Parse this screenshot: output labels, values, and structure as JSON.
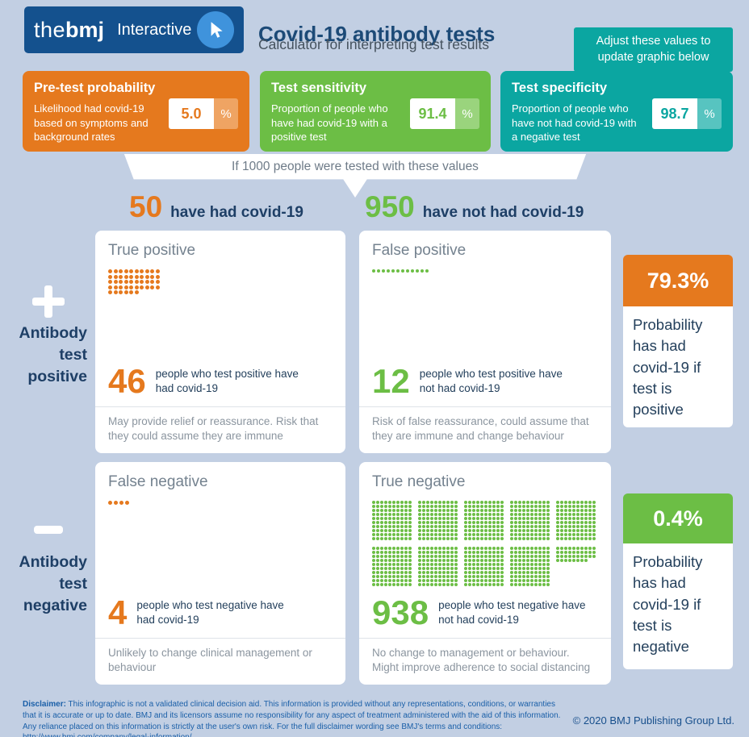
{
  "colors": {
    "background": "#c2cfe3",
    "bmj_navy": "#14518e",
    "title_navy": "#1c4a77",
    "label_navy": "#1e3f66",
    "orange": "#e5791e",
    "green": "#6cbe45",
    "teal": "#0ba6a1",
    "cell_title_gray": "#74828f",
    "note_gray": "#8b959f"
  },
  "header": {
    "logo_the": "the",
    "logo_bmj": "bmj",
    "logo_sub": "Interactive",
    "title": "Covid-19 antibody tests",
    "subtitle": "Calculator for interpreting test results",
    "tooltip": "Adjust these values to update graphic below"
  },
  "params": {
    "pretest": {
      "title": "Pre-test probability",
      "desc": "Likelihood had covid-19 based on symptoms and background rates",
      "value": "5.0",
      "unit": "%"
    },
    "sensitivity": {
      "title": "Test sensitivity",
      "desc": "Proportion of people who have had covid-19 with a positive test",
      "value": "91.4",
      "unit": "%"
    },
    "specificity": {
      "title": "Test specificity",
      "desc": "Proportion of people who have not had covid-19 with a negative test",
      "value": "98.7",
      "unit": "%"
    }
  },
  "banner": {
    "text": "If 1000 people were tested with these values"
  },
  "columns": {
    "had": {
      "number": "50",
      "label": "have had covid-19"
    },
    "not_had": {
      "number": "950",
      "label": "have not had covid-19"
    }
  },
  "rows": {
    "positive": {
      "label": "Antibody test positive"
    },
    "negative": {
      "label": "Antibody test negative"
    }
  },
  "cells": {
    "true_positive": {
      "title": "True positive",
      "count": 46,
      "number": "46",
      "dot_color": "#e5791e",
      "desc": "people who test positive have had covid-19",
      "note": "May provide relief or reassurance. Risk that they could assume they are immune"
    },
    "false_positive": {
      "title": "False positive",
      "count": 12,
      "number": "12",
      "dot_color": "#6cbe45",
      "desc": "people who test positive have not had covid-19",
      "note": "Risk of false reassurance, could assume that they are immune and change behaviour"
    },
    "false_negative": {
      "title": "False negative",
      "count": 4,
      "number": "4",
      "dot_color": "#e5791e",
      "desc": "people who test negative have had covid-19",
      "note": "Unlikely to change clinical management or behaviour"
    },
    "true_negative": {
      "title": "True negative",
      "count": 938,
      "number": "938",
      "dot_color": "#6cbe45",
      "desc": "people who test negative have not had covid-19",
      "note": "No change to management or behaviour. Might improve adherence to social distancing"
    }
  },
  "results": {
    "positive": {
      "value": "79.3%",
      "label": "Probability has had covid-19 if test is positive"
    },
    "negative": {
      "value": "0.4%",
      "label": "Probability has had covid-19 if test is negative"
    }
  },
  "footer": {
    "disclaimer_lead": "Disclaimer:",
    "disclaimer_text": " This infographic is not a validated clinical decision aid. This information is provided without any representations, conditions, or warranties that it is accurate or up to date. BMJ and its licensors assume no responsibility for any aspect of treatment administered with the aid of this information. Any reliance placed on this information is strictly at the user's own risk. For the full disclaimer wording see BMJ's terms and conditions: http://www.bmj.com/company/legal-information/",
    "copyright": "© 2020 BMJ Publishing Group Ltd."
  }
}
